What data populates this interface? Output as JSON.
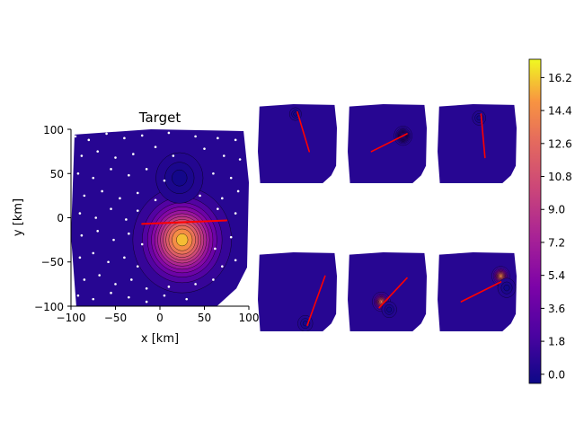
{
  "chart_data": [
    {
      "type": "heatmap",
      "title": "Target",
      "xlabel": "x [km]",
      "ylabel": "y [km]",
      "xlim": [
        -100,
        100
      ],
      "ylim": [
        -100,
        100
      ],
      "xticks": [
        "−100",
        "−50",
        "0",
        "50",
        "100"
      ],
      "yticks": [
        "100",
        "50",
        "0",
        "−50",
        "−100"
      ],
      "hotspots": [
        {
          "x": 25,
          "y": -25,
          "peak": 16.5,
          "sigma": 22
        },
        {
          "x": 22,
          "y": 45,
          "peak": -0.4,
          "sigma": 14
        }
      ],
      "line": {
        "x1": -20,
        "y1": -7,
        "x2": 75,
        "y2": -3,
        "color": "#ff0000"
      },
      "stations": [
        [
          -95,
          92
        ],
        [
          -80,
          88
        ],
        [
          -60,
          95
        ],
        [
          -40,
          90
        ],
        [
          -20,
          93
        ],
        [
          10,
          96
        ],
        [
          40,
          92
        ],
        [
          65,
          90
        ],
        [
          85,
          88
        ],
        [
          -88,
          70
        ],
        [
          -70,
          75
        ],
        [
          -50,
          68
        ],
        [
          -30,
          72
        ],
        [
          -5,
          80
        ],
        [
          15,
          70
        ],
        [
          50,
          78
        ],
        [
          72,
          70
        ],
        [
          90,
          66
        ],
        [
          -92,
          50
        ],
        [
          -75,
          45
        ],
        [
          -55,
          55
        ],
        [
          -35,
          48
        ],
        [
          -15,
          55
        ],
        [
          5,
          42
        ],
        [
          60,
          50
        ],
        [
          80,
          45
        ],
        [
          -85,
          25
        ],
        [
          -65,
          30
        ],
        [
          -45,
          22
        ],
        [
          -25,
          28
        ],
        [
          -5,
          20
        ],
        [
          45,
          25
        ],
        [
          70,
          22
        ],
        [
          88,
          30
        ],
        [
          -90,
          5
        ],
        [
          -72,
          0
        ],
        [
          -55,
          10
        ],
        [
          -38,
          -2
        ],
        [
          -25,
          8
        ],
        [
          85,
          5
        ],
        [
          65,
          10
        ],
        [
          -88,
          -20
        ],
        [
          -70,
          -15
        ],
        [
          -52,
          -25
        ],
        [
          -35,
          -18
        ],
        [
          -20,
          -30
        ],
        [
          80,
          -22
        ],
        [
          62,
          -35
        ],
        [
          -90,
          -45
        ],
        [
          -75,
          -40
        ],
        [
          -58,
          -50
        ],
        [
          -40,
          -45
        ],
        [
          -25,
          -55
        ],
        [
          85,
          -48
        ],
        [
          70,
          -55
        ],
        [
          -85,
          -70
        ],
        [
          -68,
          -65
        ],
        [
          -50,
          -75
        ],
        [
          -32,
          -70
        ],
        [
          -15,
          -80
        ],
        [
          10,
          -78
        ],
        [
          40,
          -75
        ],
        [
          60,
          -70
        ],
        [
          -92,
          -88
        ],
        [
          -75,
          -92
        ],
        [
          -55,
          -85
        ],
        [
          -35,
          -90
        ],
        [
          -15,
          -95
        ],
        [
          5,
          -88
        ],
        [
          30,
          -92
        ]
      ]
    },
    {
      "type": "heatmap",
      "hotspots": [
        {
          "x": -5,
          "y": 75,
          "peak": -0.3,
          "sigma": 8
        }
      ],
      "line": {
        "x1": 0,
        "y1": 80,
        "x2": 30,
        "y2": -20,
        "color": "#ff0000"
      }
    },
    {
      "type": "heatmap",
      "hotspots": [
        {
          "x": 40,
          "y": 20,
          "peak": 1.2,
          "sigma": 9
        }
      ],
      "line": {
        "x1": -40,
        "y1": -20,
        "x2": 50,
        "y2": 25,
        "color": "#ff0000"
      }
    },
    {
      "type": "heatmap",
      "hotspots": [
        {
          "x": 5,
          "y": 65,
          "peak": -0.3,
          "sigma": 9
        }
      ],
      "line": {
        "x1": 10,
        "y1": 75,
        "x2": 20,
        "y2": -35,
        "color": "#ff0000"
      }
    },
    {
      "type": "heatmap",
      "hotspots": [
        {
          "x": 20,
          "y": -80,
          "peak": -0.3,
          "sigma": 10
        }
      ],
      "line": {
        "x1": 25,
        "y1": -85,
        "x2": 70,
        "y2": 40,
        "color": "#ff0000"
      }
    },
    {
      "type": "heatmap",
      "hotspots": [
        {
          "x": -15,
          "y": -25,
          "peak": 14,
          "sigma": 9
        },
        {
          "x": 5,
          "y": -45,
          "peak": -0.4,
          "sigma": 10
        }
      ],
      "line": {
        "x1": -20,
        "y1": -40,
        "x2": 50,
        "y2": 35,
        "color": "#ff0000"
      }
    },
    {
      "type": "heatmap",
      "hotspots": [
        {
          "x": 60,
          "y": 40,
          "peak": 15,
          "sigma": 9
        },
        {
          "x": 75,
          "y": 10,
          "peak": -0.4,
          "sigma": 12
        }
      ],
      "line": {
        "x1": -40,
        "y1": -25,
        "x2": 60,
        "y2": 25,
        "color": "#ff0000"
      }
    },
    {
      "type": "colorbar",
      "colormap": "plasma",
      "vmin": -0.5,
      "vmax": 17.2,
      "ticks": [
        "0.0",
        "1.8",
        "3.6",
        "5.4",
        "7.2",
        "9.0",
        "10.8",
        "12.6",
        "14.4",
        "16.2"
      ]
    }
  ]
}
